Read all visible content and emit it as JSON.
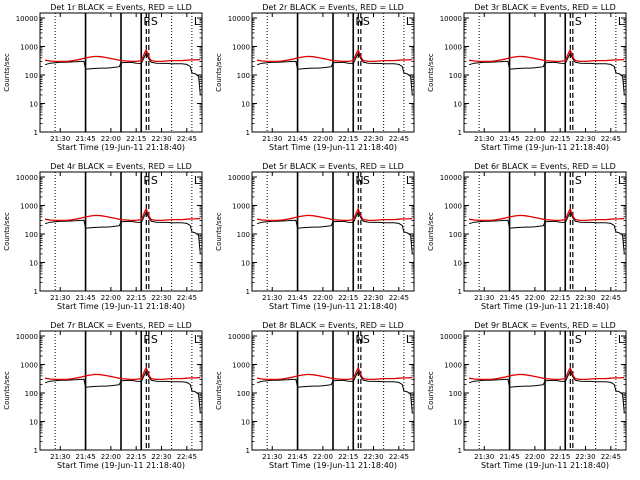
{
  "chart_data": {
    "type": "line",
    "x_unit": "time (hh:mm)",
    "x_range": [
      "21:18",
      "22:54"
    ],
    "x_ticks": [
      "21:30",
      "21:45",
      "22:00",
      "22:15",
      "22:30",
      "22:45"
    ],
    "ylabel": "Counts/sec",
    "yscale": "log",
    "ylim": [
      1,
      15000
    ],
    "y_ticks": [
      1,
      10,
      100,
      1000,
      10000
    ],
    "y_tick_labels": [
      "1",
      "10",
      "100",
      "1000",
      "10000"
    ],
    "xlabel": "Start Time (19-Jun-11 21:18:40)",
    "grid": false,
    "legend": "in title",
    "series_colors": {
      "events": "#000000",
      "lld": "#e00000"
    },
    "markers": {
      "solid": [
        "21:45",
        "22:06",
        "22:18"
      ],
      "dashed": [
        "22:21",
        "22:22:30"
      ],
      "dotted": [
        "21:27",
        "22:36",
        "22:48"
      ]
    },
    "panels": [
      {
        "title": "Det 1r BLACK = Events, RED = LLD",
        "letters": [
          "P",
          "S",
          "L"
        ]
      },
      {
        "title": "Det 2r BLACK = Events, RED = LLD",
        "letters": [
          "N",
          "S",
          "L"
        ]
      },
      {
        "title": "Det 3r BLACK = Events, RED = LLD",
        "letters": [
          "",
          "S",
          "L"
        ]
      },
      {
        "title": "Det 4r BLACK = Events, RED = LLD",
        "letters": [
          "P",
          "S",
          "L"
        ]
      },
      {
        "title": "Det 5r BLACK = Events, RED = LLD",
        "letters": [
          "N",
          "S",
          "L"
        ]
      },
      {
        "title": "Det 6r BLACK = Events, RED = LLD",
        "letters": [
          "",
          "S",
          "L"
        ]
      },
      {
        "title": "Det 7r BLACK = Events, RED = LLD",
        "letters": [
          "P",
          "S",
          "L"
        ]
      },
      {
        "title": "Det 8r BLACK = Events, RED = LLD",
        "letters": [
          "N",
          "S",
          "L"
        ]
      },
      {
        "title": "Det 9r BLACK = Events, RED = LLD",
        "letters": [
          "",
          "S",
          "L"
        ]
      }
    ],
    "series": [
      {
        "name": "Events",
        "color": "#000000",
        "x": [
          "21:21",
          "21:24",
          "21:27",
          "21:30",
          "21:33",
          "21:36",
          "21:39",
          "21:42",
          "21:44",
          "21:45",
          "21:48",
          "21:51",
          "21:54",
          "21:57",
          "22:00",
          "22:03",
          "22:05",
          "22:06",
          "22:09",
          "22:12",
          "22:15",
          "22:17",
          "22:18",
          "22:19",
          "22:20",
          "22:21",
          "22:22",
          "22:23",
          "22:24",
          "22:27",
          "22:30",
          "22:33",
          "22:36",
          "22:39",
          "22:42",
          "22:45",
          "22:47",
          "22:48",
          "22:50",
          "22:52",
          "22:53"
        ],
        "y": [
          230,
          260,
          270,
          280,
          280,
          285,
          290,
          300,
          300,
          160,
          165,
          170,
          175,
          175,
          180,
          190,
          195,
          270,
          275,
          280,
          260,
          255,
          250,
          330,
          450,
          600,
          420,
          330,
          280,
          260,
          255,
          255,
          250,
          250,
          250,
          235,
          200,
          120,
          110,
          90,
          20
        ]
      },
      {
        "name": "LLD",
        "color": "#e00000",
        "x": [
          "21:21",
          "21:24",
          "21:27",
          "21:30",
          "21:33",
          "21:36",
          "21:39",
          "21:42",
          "21:45",
          "21:48",
          "21:51",
          "21:54",
          "21:57",
          "22:00",
          "22:03",
          "22:06",
          "22:09",
          "22:12",
          "22:15",
          "22:18",
          "22:19",
          "22:20",
          "22:21",
          "22:22",
          "22:23",
          "22:24",
          "22:27",
          "22:30",
          "22:33",
          "22:36",
          "22:39",
          "22:42",
          "22:45",
          "22:48",
          "22:50",
          "22:52",
          "22:53"
        ],
        "y": [
          330,
          310,
          300,
          300,
          300,
          310,
          330,
          360,
          400,
          430,
          450,
          440,
          410,
          380,
          350,
          320,
          310,
          300,
          300,
          320,
          420,
          600,
          750,
          520,
          380,
          320,
          300,
          300,
          310,
          320,
          320,
          320,
          330,
          340,
          340,
          345,
          350
        ]
      }
    ]
  }
}
